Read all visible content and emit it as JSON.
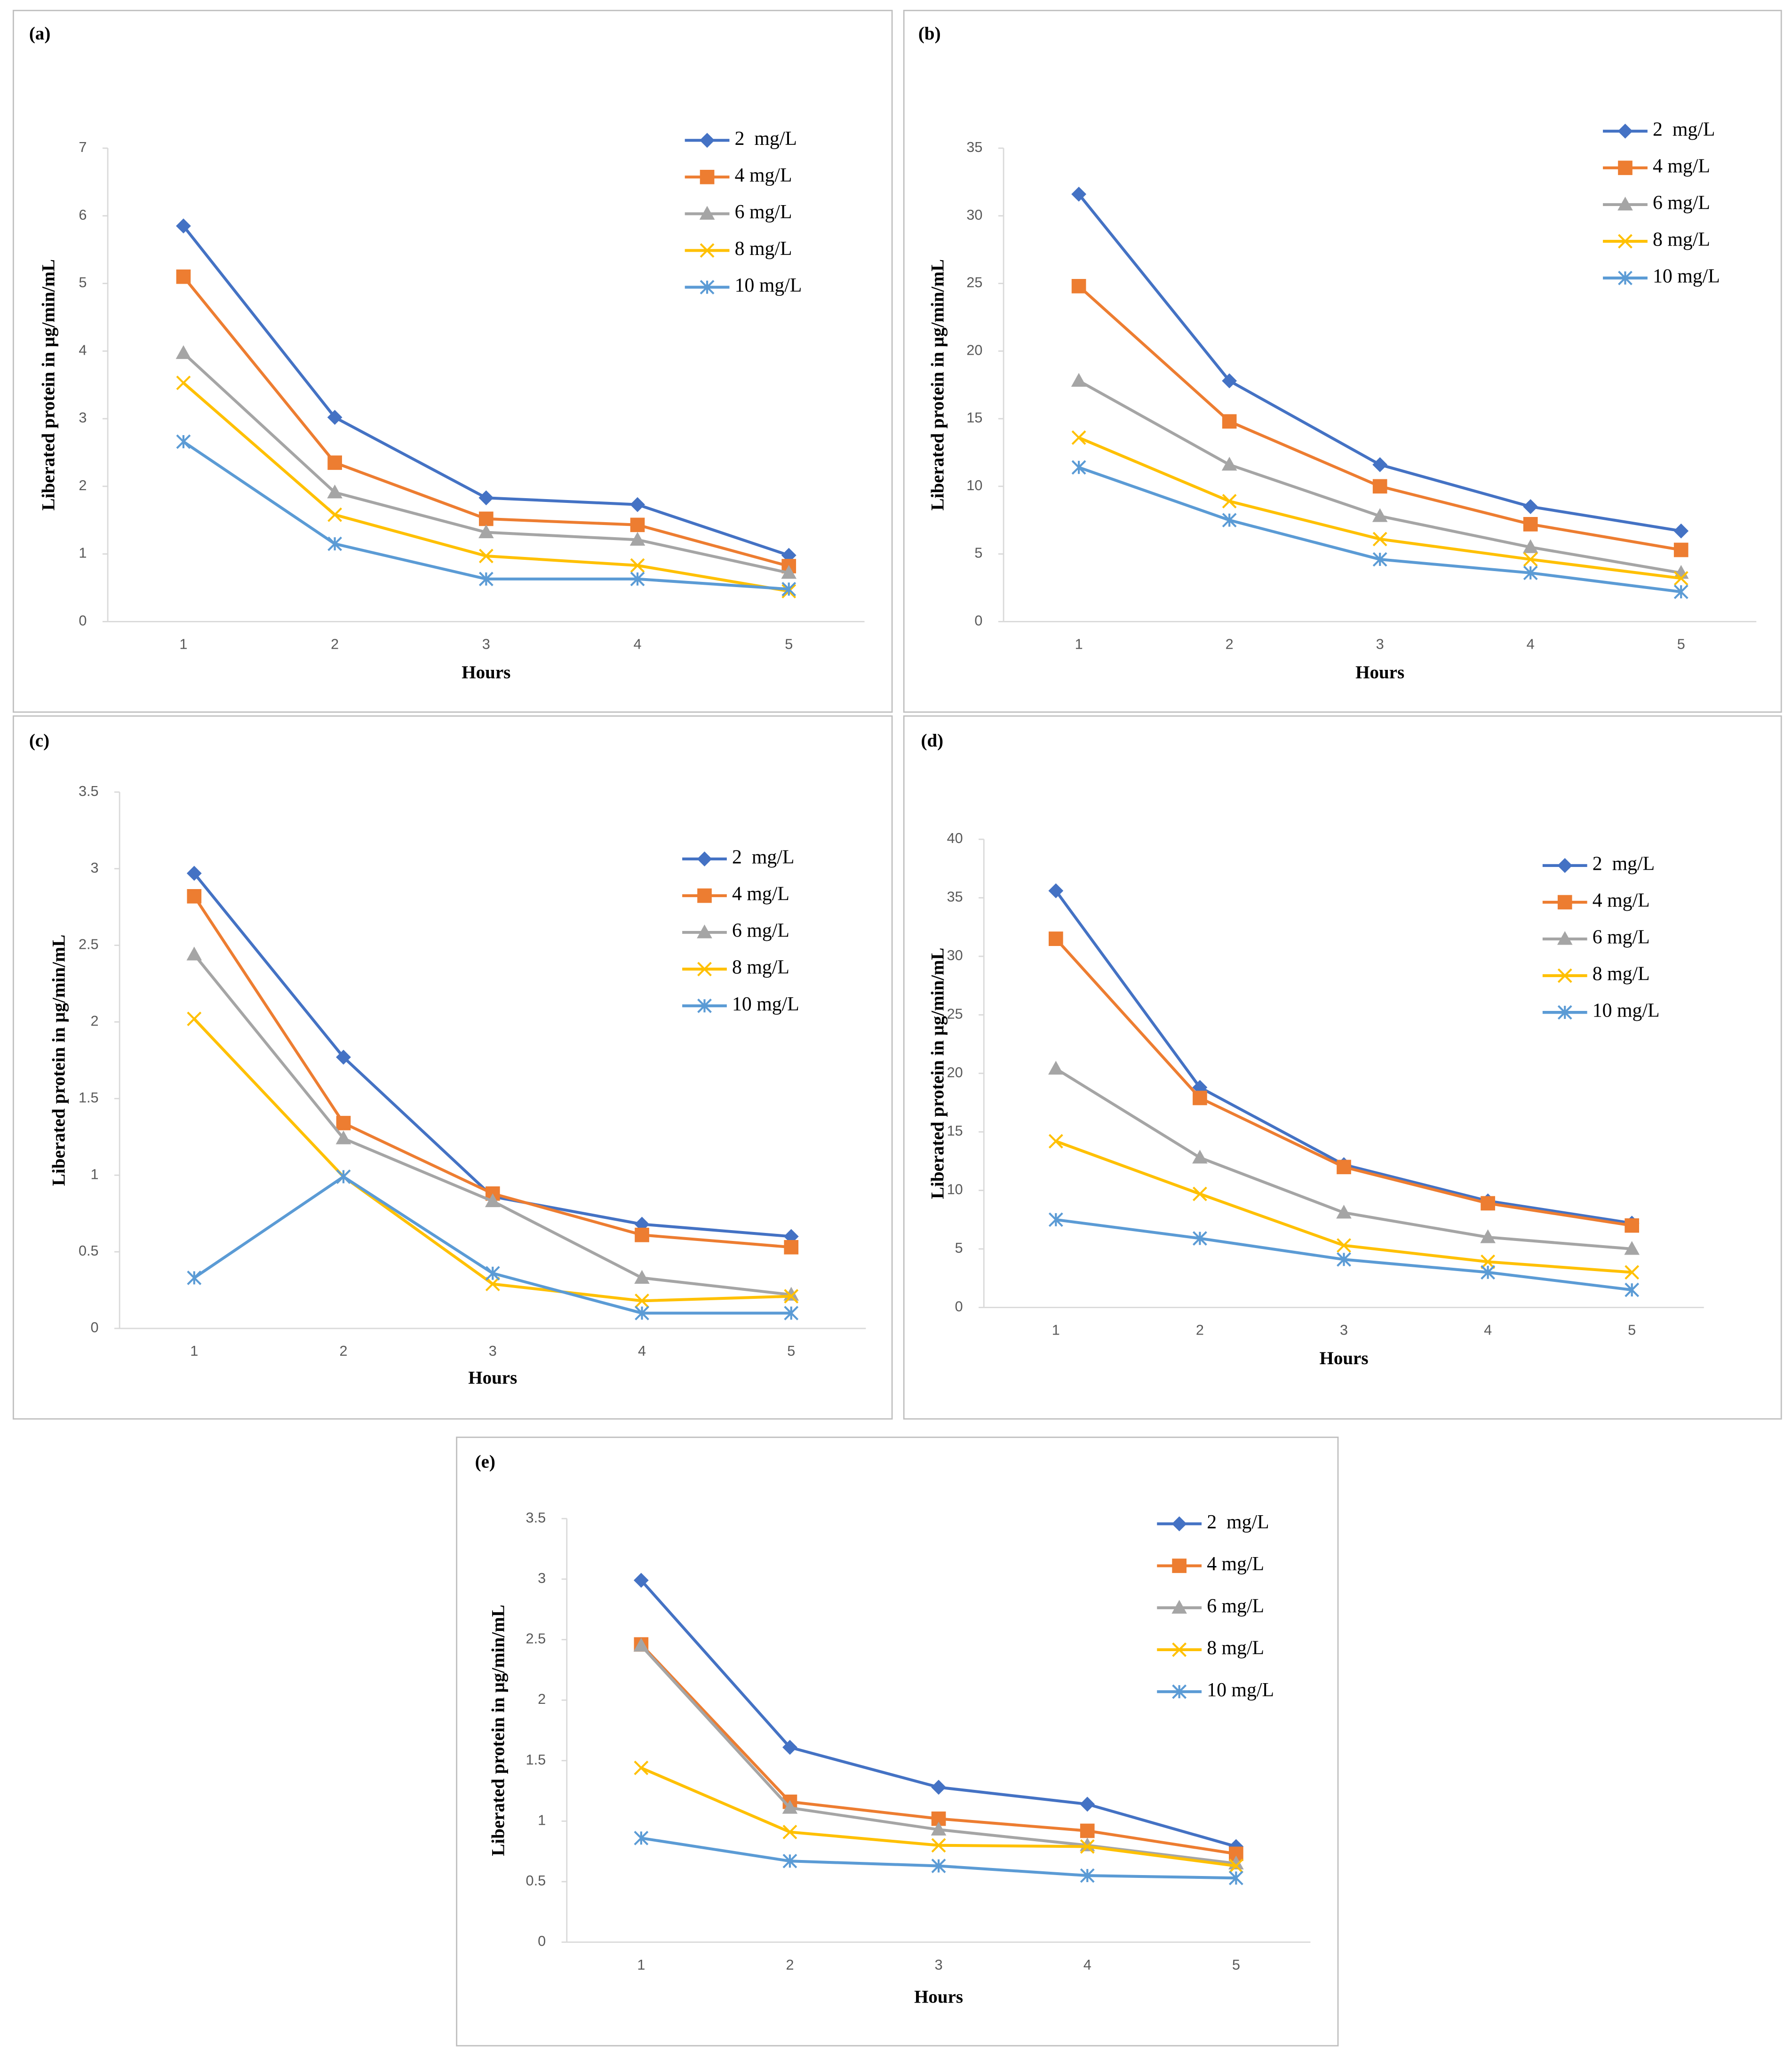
{
  "chart_data": [
    {
      "type": "line",
      "title": "(a)",
      "xlabel": "Hours",
      "ylabel": "Liberated protein in µg/min/mL",
      "categories": [
        1,
        2,
        3,
        4,
        5
      ],
      "ylim": [
        0,
        7
      ],
      "yticks": [
        0,
        1,
        2,
        3,
        4,
        5,
        6,
        7
      ],
      "series": [
        {
          "name": "2  mg/L",
          "color": "#4472c4",
          "marker": "diamond",
          "values": [
            5.85,
            3.02,
            1.83,
            1.73,
            0.98
          ]
        },
        {
          "name": "4 mg/L",
          "color": "#ed7d31",
          "marker": "square",
          "values": [
            5.1,
            2.35,
            1.52,
            1.43,
            0.82
          ]
        },
        {
          "name": "6 mg/L",
          "color": "#a5a5a5",
          "marker": "triangle",
          "values": [
            3.97,
            1.91,
            1.32,
            1.21,
            0.72
          ]
        },
        {
          "name": "8 mg/L",
          "color": "#ffc000",
          "marker": "x",
          "values": [
            3.53,
            1.58,
            0.97,
            0.83,
            0.45
          ]
        },
        {
          "name": "10 mg/L",
          "color": "#5b9bd5",
          "marker": "asterisk",
          "values": [
            2.66,
            1.15,
            0.63,
            0.63,
            0.48
          ]
        }
      ]
    },
    {
      "type": "line",
      "title": "(b)",
      "xlabel": "Hours",
      "ylabel": "Liberated protein in µg/min/mL",
      "categories": [
        1,
        2,
        3,
        4,
        5
      ],
      "ylim": [
        0,
        35
      ],
      "yticks": [
        0,
        5,
        10,
        15,
        20,
        25,
        30,
        35
      ],
      "series": [
        {
          "name": "2  mg/L",
          "color": "#4472c4",
          "marker": "diamond",
          "values": [
            31.6,
            17.8,
            11.6,
            8.5,
            6.7
          ]
        },
        {
          "name": "4 mg/L",
          "color": "#ed7d31",
          "marker": "square",
          "values": [
            24.8,
            14.8,
            10.0,
            7.2,
            5.3
          ]
        },
        {
          "name": "6 mg/L",
          "color": "#a5a5a5",
          "marker": "triangle",
          "values": [
            17.8,
            11.6,
            7.8,
            5.5,
            3.6
          ]
        },
        {
          "name": "8 mg/L",
          "color": "#ffc000",
          "marker": "x",
          "values": [
            13.6,
            8.9,
            6.1,
            4.6,
            3.2
          ]
        },
        {
          "name": "10 mg/L",
          "color": "#5b9bd5",
          "marker": "asterisk",
          "values": [
            11.4,
            7.5,
            4.6,
            3.6,
            2.2
          ]
        }
      ]
    },
    {
      "type": "line",
      "title": "(c)",
      "xlabel": "Hours",
      "ylabel": "Liberated protein in µg/min/mL",
      "categories": [
        1,
        2,
        3,
        4,
        5
      ],
      "ylim": [
        0,
        3.5
      ],
      "yticks": [
        0,
        0.5,
        1,
        1.5,
        2,
        2.5,
        3,
        3.5
      ],
      "series": [
        {
          "name": "2  mg/L",
          "color": "#4472c4",
          "marker": "diamond",
          "values": [
            2.97,
            1.77,
            0.86,
            0.68,
            0.6
          ]
        },
        {
          "name": "4 mg/L",
          "color": "#ed7d31",
          "marker": "square",
          "values": [
            2.82,
            1.34,
            0.88,
            0.61,
            0.53
          ]
        },
        {
          "name": "6 mg/L",
          "color": "#a5a5a5",
          "marker": "triangle",
          "values": [
            2.44,
            1.24,
            0.83,
            0.33,
            0.22
          ]
        },
        {
          "name": "8 mg/L",
          "color": "#ffc000",
          "marker": "x",
          "values": [
            2.02,
            0.99,
            0.29,
            0.18,
            0.21
          ]
        },
        {
          "name": "10 mg/L",
          "color": "#5b9bd5",
          "marker": "asterisk",
          "values": [
            0.33,
            0.99,
            0.36,
            0.1,
            0.1
          ]
        }
      ]
    },
    {
      "type": "line",
      "title": "(d)",
      "xlabel": "Hours",
      "ylabel": "Liberated protein in µg/min/mL",
      "categories": [
        1,
        2,
        3,
        4,
        5
      ],
      "ylim": [
        0,
        40
      ],
      "yticks": [
        0,
        5,
        10,
        15,
        20,
        25,
        30,
        35,
        40
      ],
      "series": [
        {
          "name": "2  mg/L",
          "color": "#4472c4",
          "marker": "diamond",
          "values": [
            35.6,
            18.8,
            12.2,
            9.1,
            7.2
          ]
        },
        {
          "name": "4 mg/L",
          "color": "#ed7d31",
          "marker": "square",
          "values": [
            31.5,
            17.9,
            12.0,
            8.9,
            7.0
          ]
        },
        {
          "name": "6 mg/L",
          "color": "#a5a5a5",
          "marker": "triangle",
          "values": [
            20.4,
            12.8,
            8.1,
            6.0,
            5.0
          ]
        },
        {
          "name": "8 mg/L",
          "color": "#ffc000",
          "marker": "x",
          "values": [
            14.2,
            9.7,
            5.3,
            3.9,
            3.0
          ]
        },
        {
          "name": "10 mg/L",
          "color": "#5b9bd5",
          "marker": "asterisk",
          "values": [
            7.5,
            5.9,
            4.1,
            3.0,
            1.5
          ]
        }
      ]
    },
    {
      "type": "line",
      "title": "(e)",
      "xlabel": "Hours",
      "ylabel": "Liberated protein in µg/min/mL",
      "categories": [
        1,
        2,
        3,
        4,
        5
      ],
      "ylim": [
        0,
        3.5
      ],
      "yticks": [
        0,
        0.5,
        1,
        1.5,
        2,
        2.5,
        3,
        3.5
      ],
      "series": [
        {
          "name": "2  mg/L",
          "color": "#4472c4",
          "marker": "diamond",
          "values": [
            2.99,
            1.61,
            1.28,
            1.14,
            0.79
          ]
        },
        {
          "name": "4 mg/L",
          "color": "#ed7d31",
          "marker": "square",
          "values": [
            2.46,
            1.16,
            1.02,
            0.92,
            0.73
          ]
        },
        {
          "name": "6 mg/L",
          "color": "#a5a5a5",
          "marker": "triangle",
          "values": [
            2.45,
            1.11,
            0.93,
            0.8,
            0.65
          ]
        },
        {
          "name": "8 mg/L",
          "color": "#ffc000",
          "marker": "x",
          "values": [
            1.44,
            0.91,
            0.8,
            0.79,
            0.63
          ]
        },
        {
          "name": "10 mg/L",
          "color": "#5b9bd5",
          "marker": "asterisk",
          "values": [
            0.86,
            0.67,
            0.63,
            0.55,
            0.53
          ]
        }
      ]
    }
  ]
}
